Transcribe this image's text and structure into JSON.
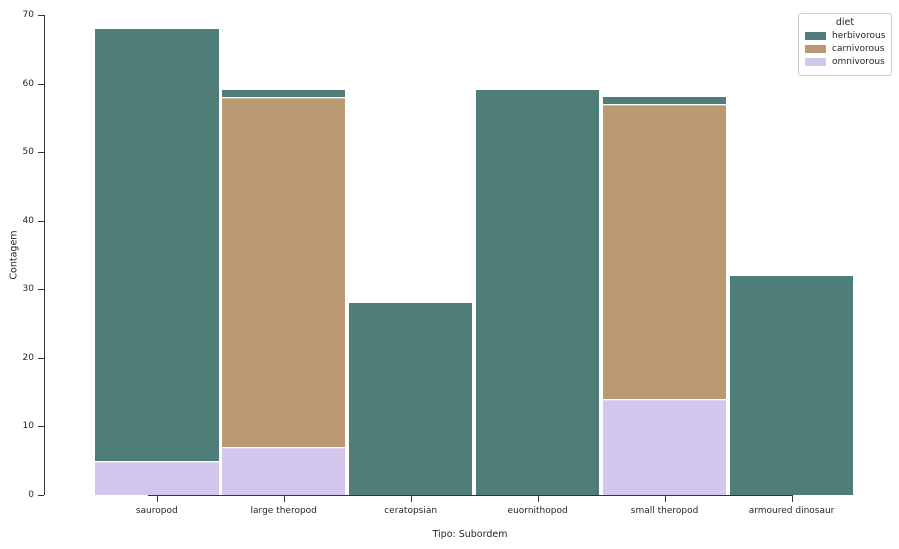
{
  "chart_data": {
    "type": "bar",
    "stacked": true,
    "title": "",
    "xlabel": "Tipo: Subordem",
    "ylabel": "Contagem",
    "ylim": [
      0,
      70
    ],
    "yticks": [
      0,
      10,
      20,
      30,
      40,
      50,
      60,
      70
    ],
    "grid": false,
    "categories": [
      "sauropod",
      "large theropod",
      "ceratopsian",
      "euornithopod",
      "small theropod",
      "armoured dinosaur"
    ],
    "series": [
      {
        "name": "herbivorous",
        "color": "#4f7e78",
        "values": [
          63,
          1,
          28,
          59,
          1,
          32
        ]
      },
      {
        "name": "carnivorous",
        "color": "#b99a73",
        "values": [
          0,
          51,
          0,
          0,
          43,
          0
        ]
      },
      {
        "name": "omnivorous",
        "color": "#d3c7ee",
        "values": [
          5,
          7,
          0,
          0,
          14,
          0
        ]
      }
    ],
    "stack_order_bottom_to_top": [
      "omnivorous",
      "carnivorous",
      "herbivorous"
    ],
    "totals": [
      68,
      59,
      28,
      59,
      58,
      32
    ],
    "legend": {
      "title": "diet",
      "position": "upper-right",
      "entries": [
        "herbivorous",
        "carnivorous",
        "omnivorous"
      ]
    }
  }
}
